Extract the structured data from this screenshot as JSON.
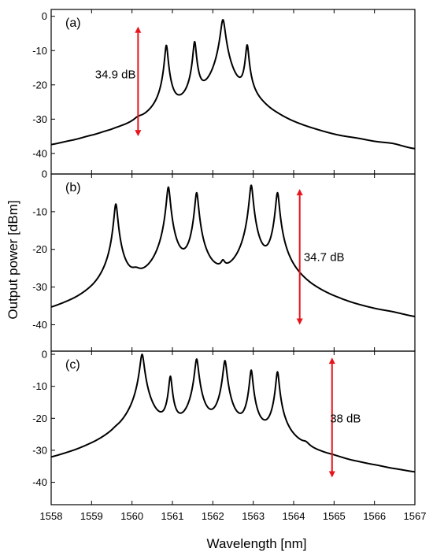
{
  "chart_data": {
    "type": "line",
    "xlabel": "Wavelength [nm]",
    "ylabel": "Output power [dBm]",
    "xlim": [
      1558,
      1567
    ],
    "x_ticks": [
      "1558",
      "1559",
      "1560",
      "1561",
      "1562",
      "1563",
      "1564",
      "1565",
      "1566",
      "1567"
    ],
    "panels": [
      {
        "label": "(a)",
        "ylim": [
          -46,
          2
        ],
        "y_ticks": [
          {
            "value": 0,
            "label": "0"
          },
          {
            "value": -10,
            "label": "-10"
          },
          {
            "value": -20,
            "label": "-20"
          },
          {
            "value": -30,
            "label": "-30"
          },
          {
            "value": -40,
            "label": "-40"
          }
        ],
        "baseline": [
          [
            1558,
            -46
          ],
          [
            1558.5,
            -44.5
          ],
          [
            1559,
            -42.5
          ],
          [
            1559.4,
            -41
          ],
          [
            1559.7,
            -40
          ],
          [
            1560,
            -40
          ],
          [
            1560.6,
            -37.5
          ],
          [
            1561,
            -37.5
          ],
          [
            1561.9,
            -36.5
          ],
          [
            1562.6,
            -36.5
          ],
          [
            1563.2,
            -37.5
          ],
          [
            1563.5,
            -40.5
          ],
          [
            1564,
            -43.5
          ],
          [
            1564.5,
            -43.5
          ],
          [
            1565,
            -44
          ],
          [
            1565.6,
            -42.5
          ],
          [
            1566,
            -43
          ],
          [
            1566.4,
            -42.5
          ],
          [
            1567,
            -45.5
          ]
        ],
        "peaks": [
          {
            "x": 1560.15,
            "y": -35.5,
            "w": 0.12
          },
          {
            "x": 1560.85,
            "y": -8.5,
            "w": 0.035
          },
          {
            "x": 1561.55,
            "y": -7.5,
            "w": 0.035
          },
          {
            "x": 1562.25,
            "y": -1,
            "w": 0.05
          },
          {
            "x": 1562.85,
            "y": -8.5,
            "w": 0.035
          }
        ],
        "annotation": {
          "text": "34.9 dB",
          "x": 1560.15,
          "y_top": -3,
          "y_bottom": -35,
          "label_x": 1560.25,
          "label_y": -17
        }
      },
      {
        "label": "(b)",
        "ylim": [
          -47,
          0
        ],
        "y_ticks": [
          {
            "value": 0,
            "label": "0"
          },
          {
            "value": -10,
            "label": "-10"
          },
          {
            "value": -20,
            "label": "-20"
          },
          {
            "value": -30,
            "label": "-30"
          },
          {
            "value": -40,
            "label": "-40"
          }
        ],
        "baseline": [
          [
            1558,
            -46.5
          ],
          [
            1558.5,
            -45
          ],
          [
            1559,
            -42.5
          ],
          [
            1559.4,
            -38.5
          ],
          [
            1559.8,
            -36.5
          ],
          [
            1560.3,
            -36.5
          ],
          [
            1560.6,
            -37
          ],
          [
            1561,
            -37.5
          ],
          [
            1561.6,
            -37.5
          ],
          [
            1562,
            -37
          ],
          [
            1562.6,
            -36.5
          ],
          [
            1563,
            -36.5
          ],
          [
            1563.4,
            -37
          ],
          [
            1563.8,
            -39
          ],
          [
            1564.1,
            -40
          ],
          [
            1564.5,
            -42
          ],
          [
            1565,
            -43
          ],
          [
            1565.5,
            -44
          ],
          [
            1566,
            -44
          ],
          [
            1566.4,
            -43.5
          ],
          [
            1567,
            -45
          ]
        ],
        "peaks": [
          {
            "x": 1559.6,
            "y": -8,
            "w": 0.04
          },
          {
            "x": 1560.1,
            "y": -30.5,
            "w": 0.11
          },
          {
            "x": 1560.9,
            "y": -3.5,
            "w": 0.04
          },
          {
            "x": 1561.6,
            "y": -5,
            "w": 0.04
          },
          {
            "x": 1562.25,
            "y": -27.5,
            "w": 0.05
          },
          {
            "x": 1562.95,
            "y": -3,
            "w": 0.04
          },
          {
            "x": 1563.6,
            "y": -5,
            "w": 0.04
          }
        ],
        "annotation": {
          "text": "34.7 dB",
          "x": 1564.15,
          "y_top": -4,
          "y_bottom": -40,
          "label_x": 1564.25,
          "label_y": -22
        }
      },
      {
        "label": "(c)",
        "ylim": [
          -47,
          1
        ],
        "y_ticks": [
          {
            "value": 0,
            "label": "0"
          },
          {
            "value": -10,
            "label": "-10"
          },
          {
            "value": -20,
            "label": "-20"
          },
          {
            "value": -30,
            "label": "-30"
          },
          {
            "value": -40,
            "label": "-40"
          }
        ],
        "baseline": [
          [
            1558,
            -46.5
          ],
          [
            1558.5,
            -44.5
          ],
          [
            1559,
            -41.5
          ],
          [
            1559.5,
            -39
          ],
          [
            1560,
            -35.5
          ],
          [
            1560.6,
            -34
          ],
          [
            1561,
            -33.5
          ],
          [
            1562,
            -33
          ],
          [
            1563,
            -33.5
          ],
          [
            1563.6,
            -35
          ],
          [
            1564,
            -37.5
          ],
          [
            1564.5,
            -40
          ],
          [
            1565,
            -40
          ],
          [
            1565.5,
            -42
          ],
          [
            1566,
            -43
          ],
          [
            1566.5,
            -45
          ],
          [
            1567,
            -46.5
          ]
        ],
        "peaks": [
          {
            "x": 1559.6,
            "y": -33.5,
            "w": 0.09
          },
          {
            "x": 1560.25,
            "y": 0,
            "w": 0.045
          },
          {
            "x": 1560.95,
            "y": -7,
            "w": 0.035
          },
          {
            "x": 1561.6,
            "y": -1.5,
            "w": 0.04
          },
          {
            "x": 1562.3,
            "y": -2,
            "w": 0.04
          },
          {
            "x": 1562.95,
            "y": -5,
            "w": 0.035
          },
          {
            "x": 1563.6,
            "y": -5.5,
            "w": 0.035
          },
          {
            "x": 1564.3,
            "y": -33.5,
            "w": 0.09
          },
          {
            "x": 1564.95,
            "y": -39.5,
            "w": 0.1
          }
        ],
        "annotation": {
          "text": "38 dB",
          "x": 1564.95,
          "y_top": -1,
          "y_bottom": -38.5,
          "label_x": 1564.9,
          "label_y": -20
        }
      }
    ],
    "grid": false,
    "legend": "none",
    "colors": {
      "line": "#000000",
      "annotation": "#e8141b"
    }
  }
}
